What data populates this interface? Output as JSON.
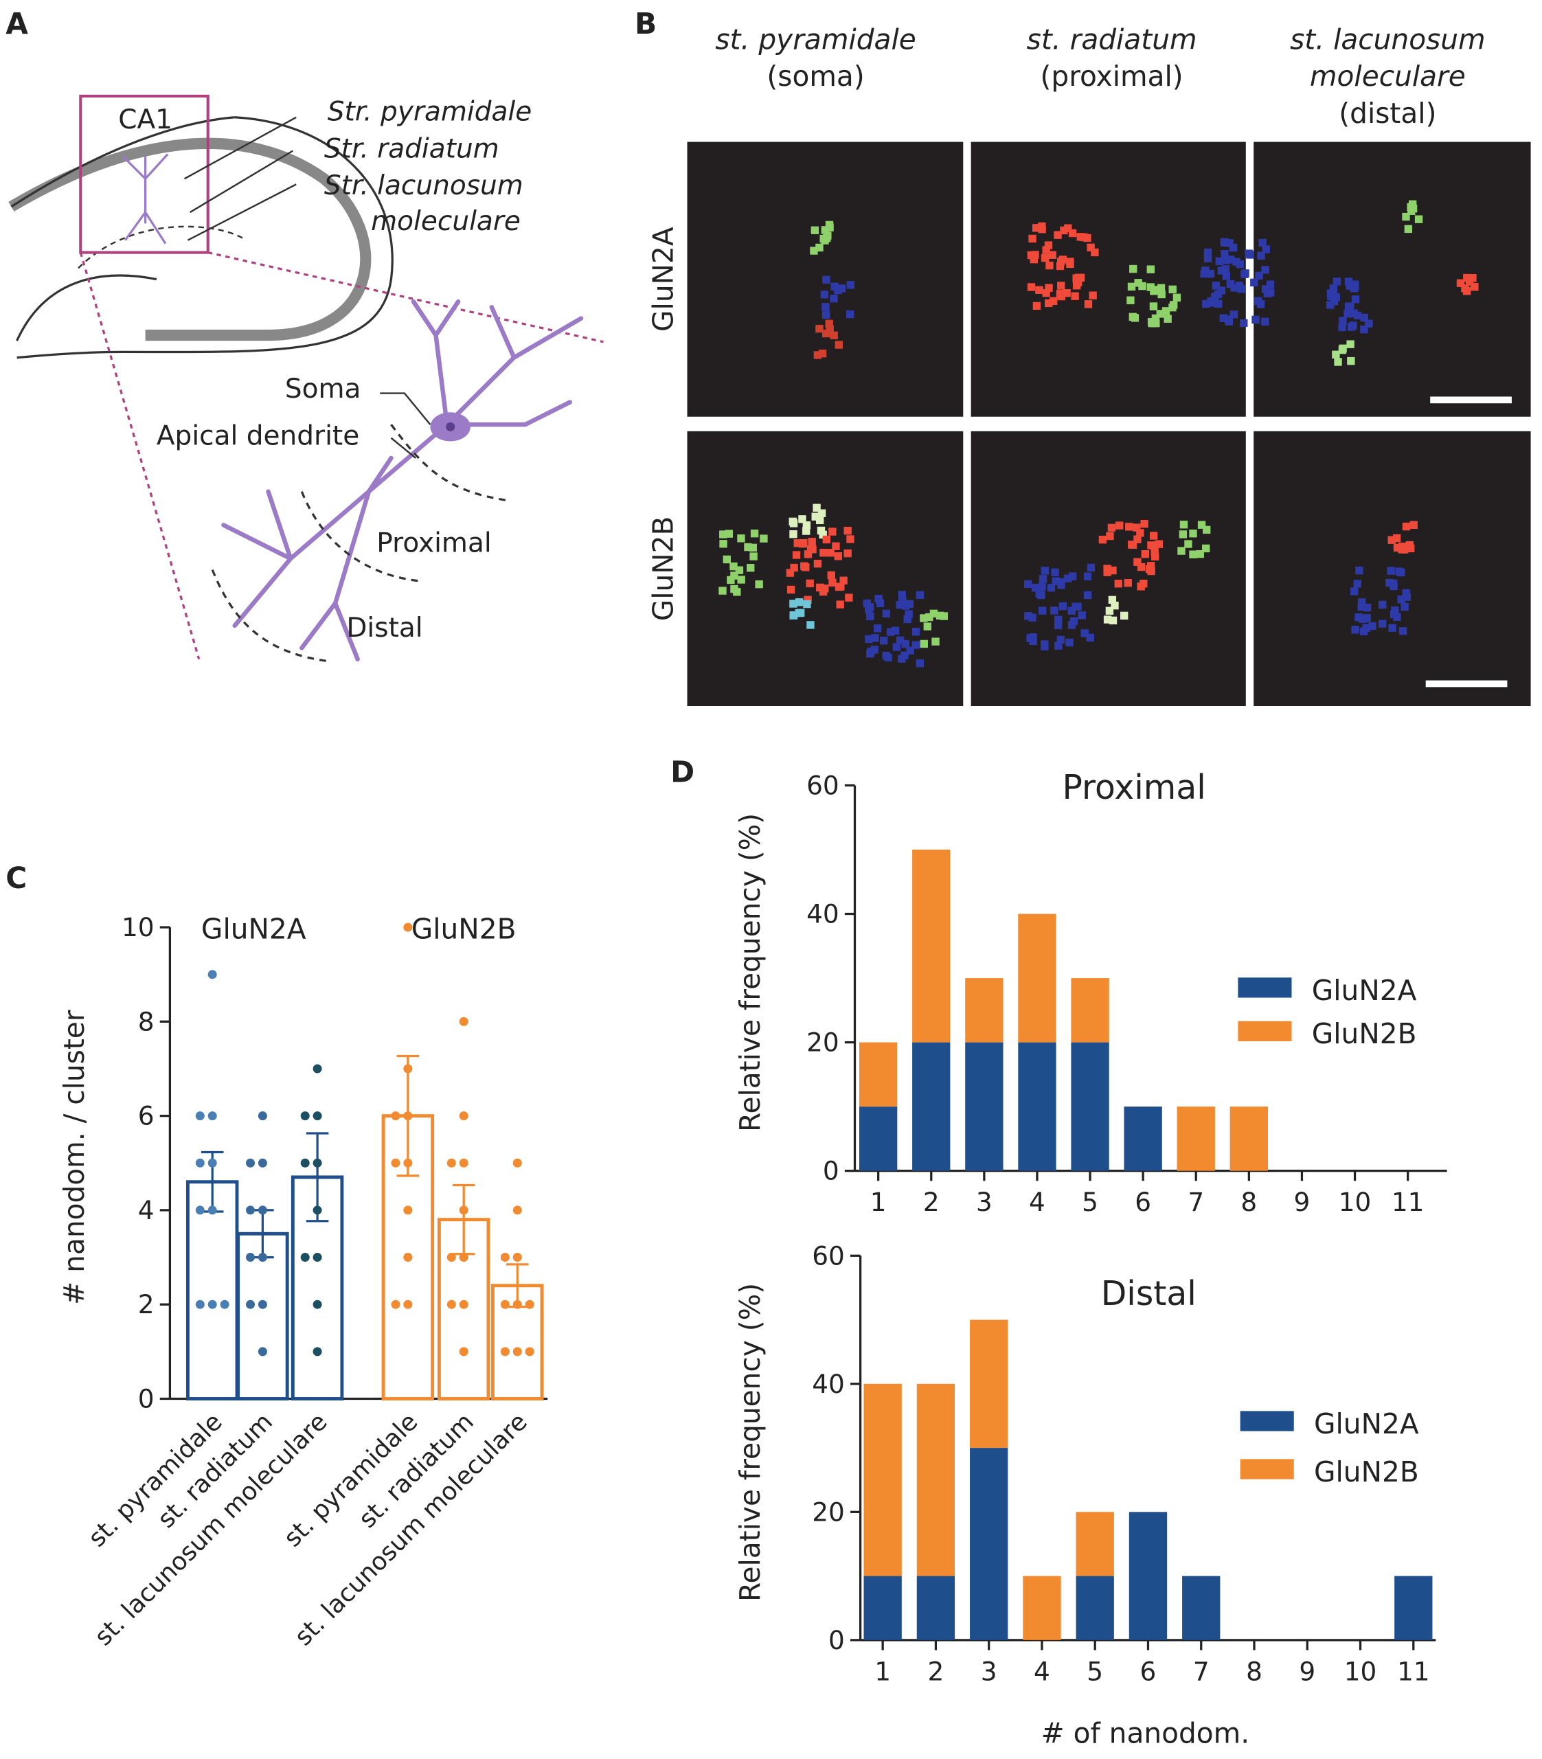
{
  "panel_labels": [
    "A",
    "B",
    "C",
    "D"
  ],
  "diagram": {
    "region": "CA1",
    "layers": [
      [
        "Str. pyramidale"
      ],
      [
        "Str. radiatum"
      ],
      [
        "Str. lacunosum",
        "moleculare"
      ]
    ],
    "parts": [
      "Soma",
      "Apical dendrite",
      "Proximal",
      "Distal"
    ]
  },
  "micrographs": {
    "columns": [
      [
        "st. pyramidale",
        "(soma)"
      ],
      [
        "st. radiatum",
        "(proximal)"
      ],
      [
        "st. lacunosum",
        "moleculare",
        "(distal)"
      ]
    ],
    "rows": [
      "GluN2A",
      "GluN2B"
    ]
  },
  "chart_data": [
    {
      "type": "bar",
      "y_label": "# nanodom. / cluster",
      "categories": [
        "st. pyramidale",
        "st. radiatum",
        "st. lacunosum moleculare"
      ],
      "ylim": [
        0,
        10
      ],
      "yticks": [
        0,
        2,
        4,
        6,
        8,
        10
      ],
      "series": [
        {
          "name": "GluN2A",
          "color": "#1f4e8c",
          "label_color": "#2e2a7a",
          "point_colors": [
            "#4a7fb5",
            "#3a6a9c",
            "#1d4f63"
          ],
          "values": [
            4.6,
            3.5,
            4.7
          ],
          "errors": [
            0.63,
            0.5,
            0.93
          ],
          "points": [
            [
              9,
              6,
              6,
              5,
              5,
              4,
              4,
              2,
              2,
              2
            ],
            [
              6,
              5,
              5,
              4,
              4,
              3,
              3,
              2,
              2,
              1
            ],
            [
              7,
              6,
              6,
              5,
              5,
              4,
              3,
              3,
              2,
              1
            ]
          ]
        },
        {
          "name": "GluN2B",
          "color": "#f28a30",
          "label_color": "#f28a30",
          "point_colors": [
            "#f28a30",
            "#f28a30",
            "#f28a30"
          ],
          "values": [
            6.0,
            3.8,
            2.4
          ],
          "errors": [
            1.27,
            0.73,
            0.45
          ],
          "points": [
            [
              10,
              7,
              6,
              6,
              5,
              5,
              4,
              3,
              2,
              2
            ],
            [
              8,
              6,
              5,
              5,
              4,
              3,
              3,
              2,
              2,
              1
            ],
            [
              5,
              4,
              3,
              3,
              2,
              2,
              2,
              1,
              1,
              1
            ]
          ]
        }
      ]
    },
    {
      "type": "stacked-bar",
      "title": "Proximal",
      "y_label": "Relative frequency (%)",
      "categories": [
        "1",
        "2",
        "3",
        "4",
        "5",
        "6",
        "7",
        "8",
        "9",
        "10",
        "11"
      ],
      "ylim": [
        0,
        60
      ],
      "yticks": [
        0,
        20,
        40,
        60
      ],
      "series": [
        {
          "name": "GluN2A",
          "color": "#1f4e8c",
          "label_color": "#2e2a7a",
          "values": [
            10,
            20,
            20,
            20,
            20,
            10,
            0,
            0,
            0,
            0,
            0
          ]
        },
        {
          "name": "GluN2B",
          "color": "#f28a30",
          "label_color": "#f28a30",
          "values": [
            10,
            30,
            10,
            20,
            10,
            0,
            10,
            10,
            0,
            0,
            0
          ]
        }
      ]
    },
    {
      "type": "stacked-bar",
      "title": "Distal",
      "y_label": "Relative frequency (%)",
      "x_label": "# of nanodom.",
      "categories": [
        "1",
        "2",
        "3",
        "4",
        "5",
        "6",
        "7",
        "8",
        "9",
        "10",
        "11"
      ],
      "ylim": [
        0,
        60
      ],
      "yticks": [
        0,
        20,
        40,
        60
      ],
      "series": [
        {
          "name": "GluN2A",
          "color": "#1f4e8c",
          "label_color": "#245a6e",
          "values": [
            10,
            10,
            30,
            0,
            10,
            20,
            10,
            0,
            0,
            0,
            10
          ]
        },
        {
          "name": "GluN2B",
          "color": "#f28a30",
          "label_color": "#f28a30",
          "values": [
            30,
            30,
            20,
            10,
            10,
            0,
            0,
            0,
            0,
            0,
            0
          ]
        }
      ]
    }
  ]
}
